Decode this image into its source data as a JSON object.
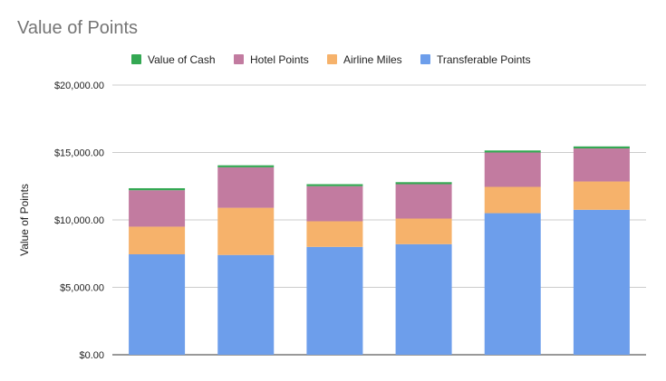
{
  "chart_data": {
    "type": "bar",
    "stacked": true,
    "title": "Value of Points",
    "xlabel": "",
    "ylabel": "Value of Points",
    "ylim": [
      0,
      20000
    ],
    "yticks": [
      0,
      5000,
      10000,
      15000,
      20000
    ],
    "ytick_labels": [
      "$0.00",
      "$5,000.00",
      "$10,000.00",
      "$15,000.00",
      "$20,000.00"
    ],
    "grid": true,
    "legend_position": "top",
    "categories": [
      "",
      "",
      "",
      "",
      "",
      ""
    ],
    "series": [
      {
        "name": "Transferable Points",
        "color": "#6d9eeb",
        "values": [
          7450,
          7400,
          8000,
          8200,
          10500,
          10750
        ]
      },
      {
        "name": "Airline Miles",
        "color": "#f6b26b",
        "values": [
          2050,
          3500,
          1900,
          1900,
          1950,
          2100
        ]
      },
      {
        "name": "Hotel Points",
        "color": "#c27ba0",
        "values": [
          2700,
          3000,
          2600,
          2550,
          2550,
          2450
        ]
      },
      {
        "name": "Value of Cash",
        "color": "#34a853",
        "values": [
          150,
          150,
          150,
          150,
          150,
          150
        ]
      }
    ],
    "legend_order": [
      "Value of Cash",
      "Hotel Points",
      "Airline Miles",
      "Transferable Points"
    ]
  }
}
